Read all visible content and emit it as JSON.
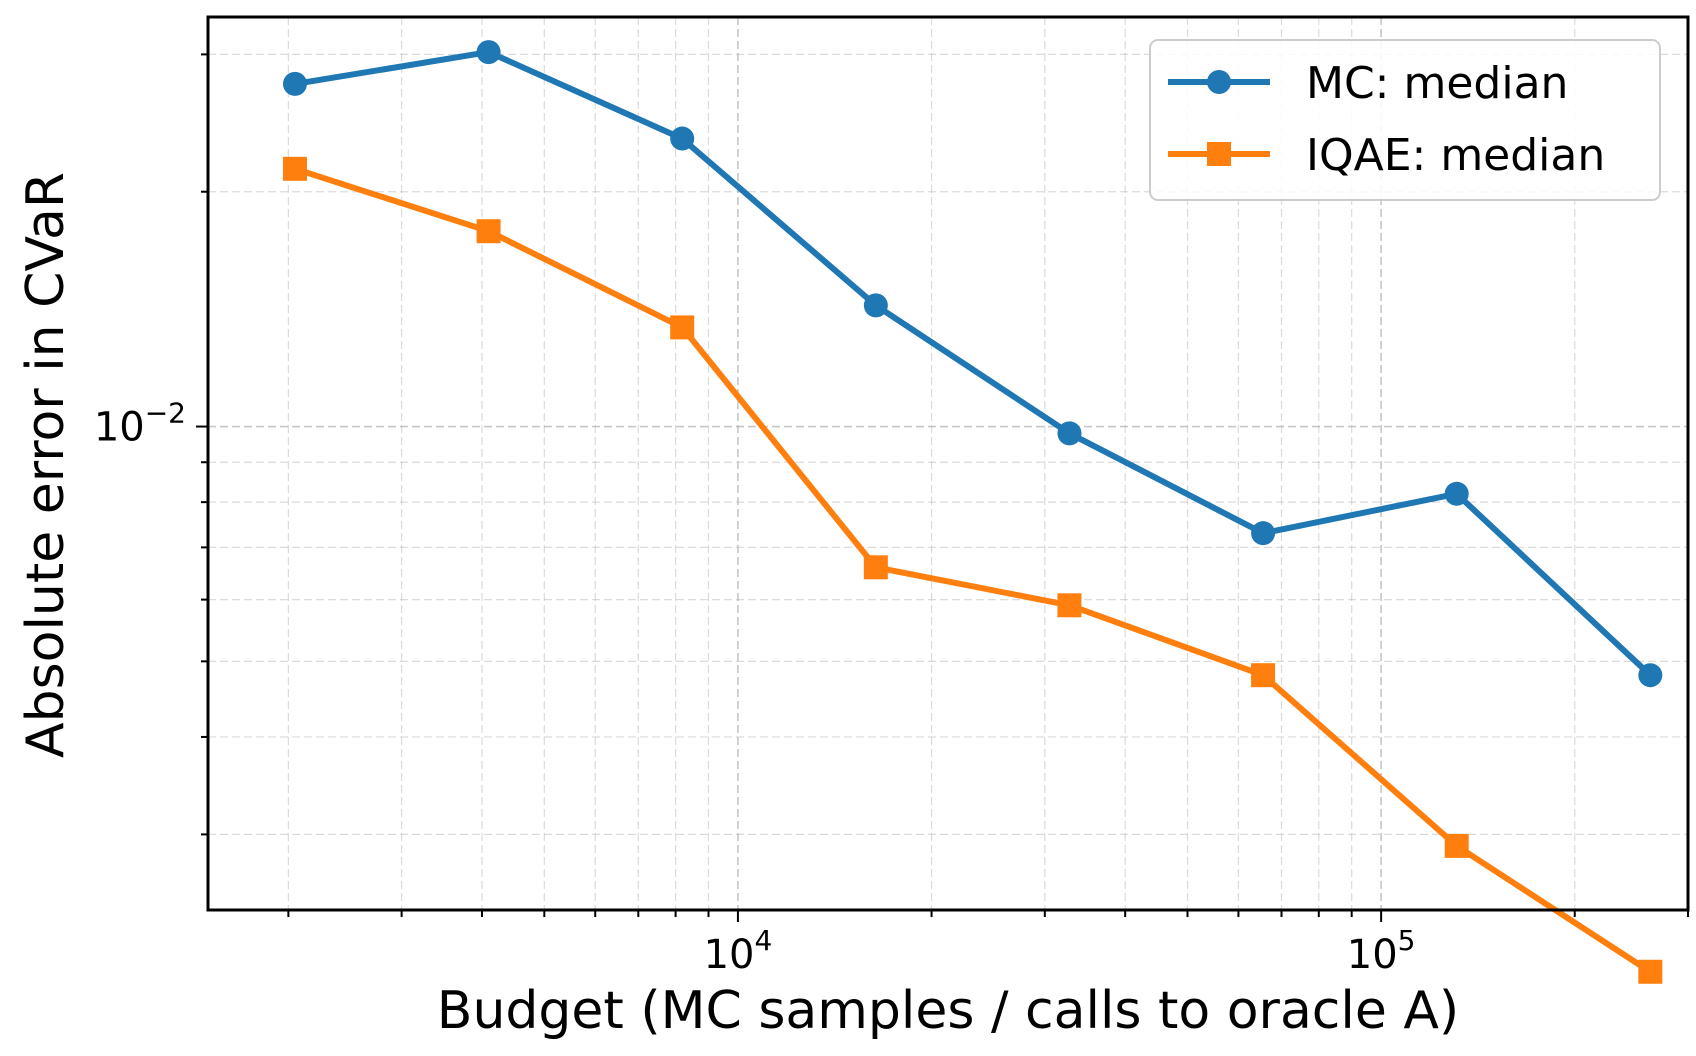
{
  "chart_data": {
    "type": "line",
    "xscale": "log",
    "yscale": "log",
    "xlabel": "Budget (MC samples / calls to oracle A)",
    "ylabel": "Absolute error in CVaR",
    "xlim": [
      1500,
      300000
    ],
    "ylim": [
      0.0024,
      0.0335
    ],
    "grid": true,
    "legend_position": "top-right",
    "x_ticks": [
      {
        "value": 10000,
        "base": "10",
        "exp": "4"
      },
      {
        "value": 100000,
        "base": "10",
        "exp": "5"
      }
    ],
    "y_ticks": [
      {
        "value": 0.01,
        "base": "10",
        "exp": "−2"
      }
    ],
    "x": [
      2048,
      4096,
      8192,
      16384,
      32768,
      65536,
      131072,
      262144
    ],
    "series": [
      {
        "name": "MC: median",
        "color": "#1f77b4",
        "marker": "circle",
        "values": [
          0.0275,
          0.0302,
          0.0234,
          0.0143,
          0.0098,
          0.0073,
          0.0082,
          0.0048
        ]
      },
      {
        "name": "IQAE: median",
        "color": "#ff7f0e",
        "marker": "square",
        "values": [
          0.0214,
          0.0178,
          0.0134,
          0.0066,
          0.0059,
          0.0048,
          0.0029,
          0.002
        ]
      }
    ]
  }
}
